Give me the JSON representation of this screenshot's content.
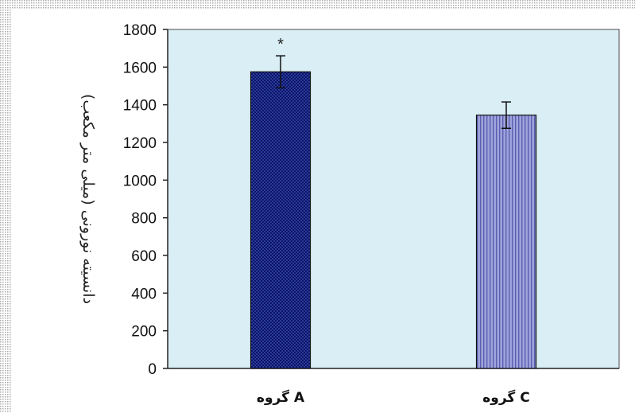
{
  "chart_data": {
    "type": "bar",
    "categories": [
      "گروه A",
      "گروه C"
    ],
    "values": [
      1575,
      1345
    ],
    "errors": [
      85,
      70
    ],
    "annotations": [
      "*",
      ""
    ],
    "ylabel": "دانسیته نورونی (میلی متر مکعب)",
    "xlabel": "",
    "ylim": [
      0,
      1800
    ],
    "yticks": [
      0,
      200,
      400,
      600,
      800,
      1000,
      1200,
      1400,
      1600,
      1800
    ],
    "grid": false,
    "legend": "none"
  },
  "colors": {
    "plot_background": "#d9eef5",
    "bar_a_fill": "#2a3a9a",
    "bar_a_pattern": "#0b1466",
    "bar_c_fill": "#9fa3dc",
    "bar_c_pattern": "#5a5fb0",
    "frame_stripe": "#a9a9a9"
  }
}
